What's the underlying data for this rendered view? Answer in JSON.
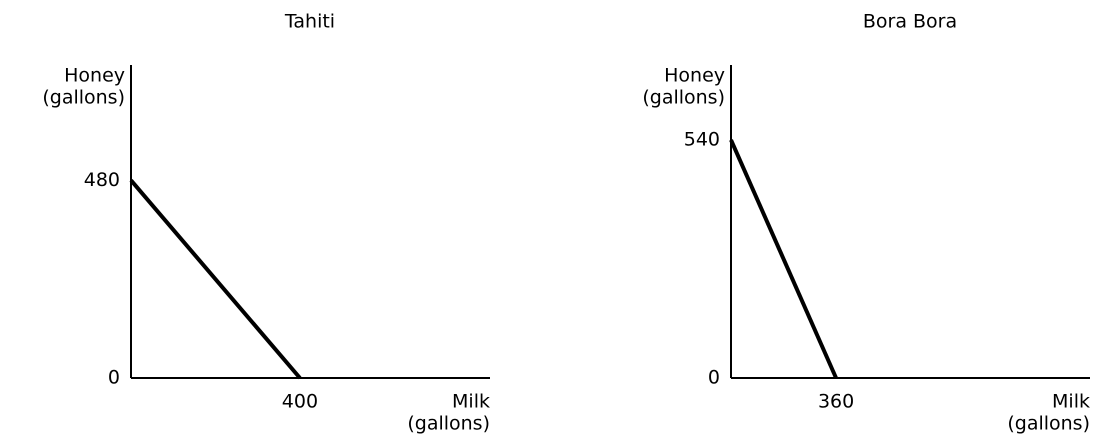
{
  "chart_data": [
    {
      "type": "line",
      "title": "Tahiti",
      "ylabel": [
        "Honey",
        "(gallons)"
      ],
      "xlabel": [
        "Milk",
        "(gallons)"
      ],
      "x": [
        0,
        400
      ],
      "values": [
        480,
        0
      ],
      "color": "#000000",
      "xlim": [
        0,
        850
      ],
      "ylim": [
        0,
        760
      ],
      "xticks": [
        400
      ],
      "yticks": [
        0,
        480
      ]
    },
    {
      "type": "line",
      "title": "Bora Bora",
      "ylabel": [
        "Honey",
        "(gallons)"
      ],
      "xlabel": [
        "Milk",
        "(gallons)"
      ],
      "x": [
        0,
        360
      ],
      "values": [
        540,
        0
      ],
      "color": "#000000",
      "xlim": [
        0,
        1230
      ],
      "ylim": [
        0,
        710
      ],
      "xticks": [
        360
      ],
      "yticks": [
        0,
        540
      ]
    }
  ]
}
